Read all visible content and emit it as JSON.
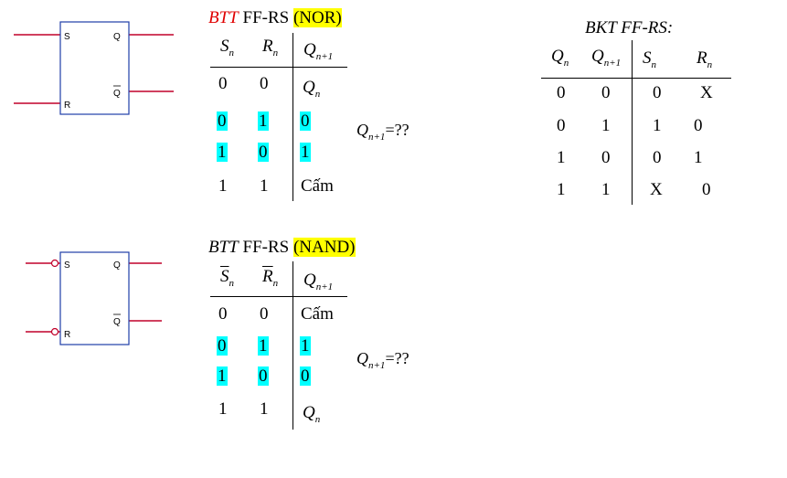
{
  "nor": {
    "symbol": {
      "s_label": "S",
      "r_label": "R",
      "q_label": "Q",
      "qbar_label": "Q"
    },
    "title": {
      "btt": "BTT",
      "ffrs": " FF-RS ",
      "gate": "(NOR)"
    },
    "headers": {
      "s": "S",
      "r": "R",
      "q": "Q",
      "sub_n": "n",
      "sub_n1": "n+1"
    },
    "rows": [
      {
        "s": "0",
        "r": "0",
        "q": "Q",
        "q_sub": "n"
      },
      {
        "s": "0",
        "r": "1",
        "q": "0"
      },
      {
        "s": "1",
        "r": "0",
        "q": "1"
      },
      {
        "s": "1",
        "r": "1",
        "q": "Cấm"
      }
    ],
    "question": {
      "q": "Q",
      "sub": "n+1",
      "rest": "=??"
    }
  },
  "nand": {
    "symbol": {
      "s_label": "S",
      "r_label": "R",
      "q_label": "Q",
      "qbar_label": "Q"
    },
    "title": {
      "btt": "BTT",
      "ffrs": " FF-RS ",
      "gate": "(NAND)"
    },
    "headers": {
      "s": "S",
      "r": "R",
      "q": "Q",
      "sub_n": "n",
      "sub_n1": "n+1"
    },
    "rows": [
      {
        "s": "0",
        "r": "0",
        "q": "Cấm"
      },
      {
        "s": "0",
        "r": "1",
        "q": "1"
      },
      {
        "s": "1",
        "r": "0",
        "q": "0"
      },
      {
        "s": "1",
        "r": "1",
        "q": "Q",
        "q_sub": "n"
      }
    ],
    "question": {
      "q": "Q",
      "sub": "n+1",
      "rest": "=??"
    }
  },
  "bkt": {
    "title": "BKT FF-RS:",
    "headers": {
      "qn": "Q",
      "qn_sub": "n",
      "qn1": "Q",
      "qn1_sub": "n+1",
      "sn": "S",
      "sn_sub": "n",
      "rn": "R",
      "rn_sub": "n"
    },
    "rows": [
      {
        "qn": "0",
        "qn1": "0",
        "sn": "0",
        "rn": "X"
      },
      {
        "qn": "0",
        "qn1": "1",
        "sn": "1",
        "rn": "0"
      },
      {
        "qn": "1",
        "qn1": "0",
        "sn": "0",
        "rn": "1"
      },
      {
        "qn": "1",
        "qn1": "1",
        "sn": "X",
        "rn": "0"
      }
    ]
  },
  "colors": {
    "wire": "#c0002a",
    "box": "#1f3ea8",
    "title_red": "#e00000",
    "highlight_yellow": "#ffff00",
    "highlight_cyan": "#00ffff"
  }
}
